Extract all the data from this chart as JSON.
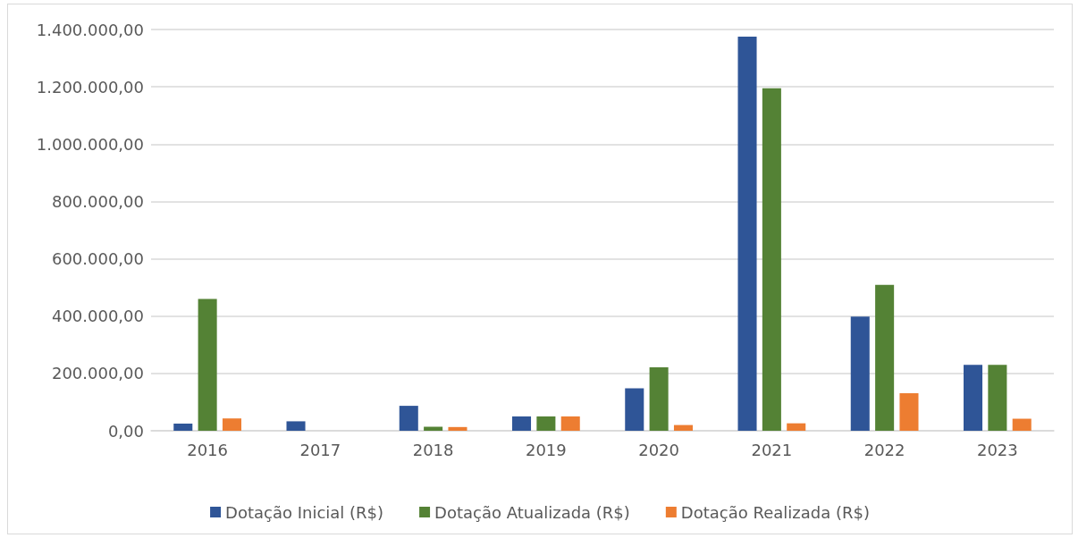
{
  "chart_data": {
    "type": "bar",
    "categories": [
      "2016",
      "2017",
      "2018",
      "2019",
      "2020",
      "2021",
      "2022",
      "2023"
    ],
    "series": [
      {
        "name": "Dotação Inicial (R$)",
        "color": "#2f5597",
        "values": [
          25000,
          33000,
          87000,
          50000,
          148000,
          1375000,
          398000,
          230000
        ]
      },
      {
        "name": "Dotação Atualizada (R$)",
        "color": "#548235",
        "values": [
          460000,
          0,
          14000,
          50000,
          221000,
          1195000,
          509000,
          230000
        ]
      },
      {
        "name": "Dotação Realizada (R$)",
        "color": "#ed7d31",
        "values": [
          43000,
          0,
          13000,
          50000,
          20000,
          26000,
          131000,
          42000
        ]
      }
    ],
    "ylim": [
      0,
      1400000
    ],
    "yticks": [
      {
        "value": 0,
        "label": "0,00"
      },
      {
        "value": 200000,
        "label": "200.000,00"
      },
      {
        "value": 400000,
        "label": "400.000,00"
      },
      {
        "value": 600000,
        "label": "600.000,00"
      },
      {
        "value": 800000,
        "label": "800.000,00"
      },
      {
        "value": 1000000,
        "label": "1.000.000,00"
      },
      {
        "value": 1200000,
        "label": "1.200.000,00"
      },
      {
        "value": 1400000,
        "label": "1.400.000,00"
      }
    ],
    "grid": "y",
    "legend": "bottom"
  }
}
